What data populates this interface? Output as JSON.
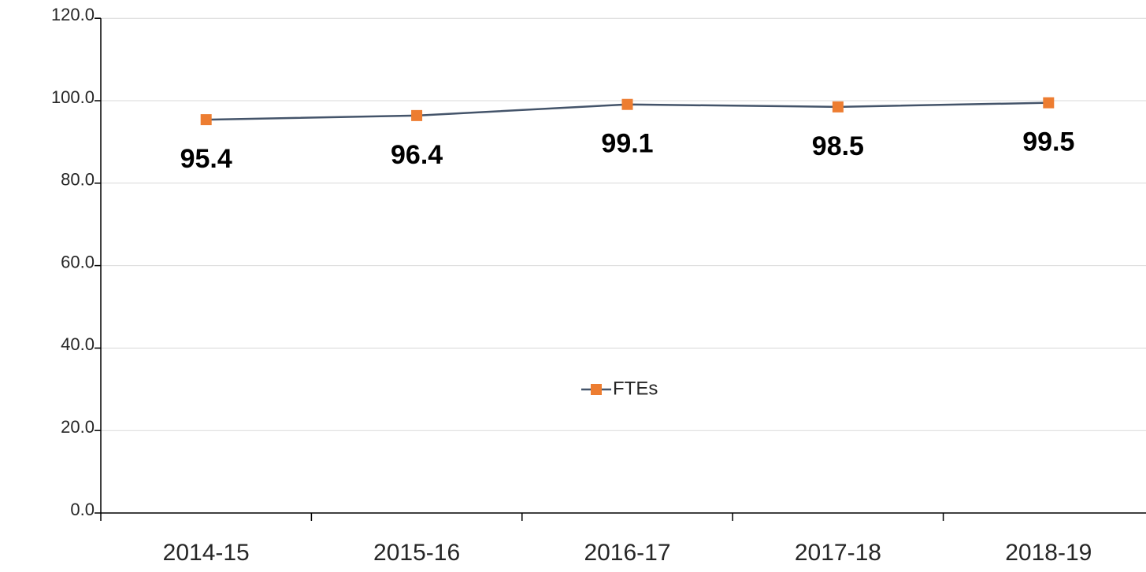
{
  "chart_data": {
    "type": "line",
    "categories": [
      "2014-15",
      "2015-16",
      "2016-17",
      "2017-18",
      "2018-19"
    ],
    "series": [
      {
        "name": "FTEs",
        "color": "#44546a",
        "marker_color": "#ed7d31",
        "values": [
          95.4,
          96.4,
          99.1,
          98.5,
          99.5
        ]
      }
    ],
    "ylim": [
      0,
      120
    ],
    "yticks": [
      {
        "value": 0,
        "label": "0.0"
      },
      {
        "value": 20,
        "label": "20.0"
      },
      {
        "value": 40,
        "label": "40.0"
      },
      {
        "value": 60,
        "label": "60.0"
      },
      {
        "value": 80,
        "label": "80.0"
      },
      {
        "value": 100,
        "label": "100.0"
      },
      {
        "value": 120,
        "label": "120.0"
      }
    ],
    "grid": true,
    "legend": "center"
  }
}
